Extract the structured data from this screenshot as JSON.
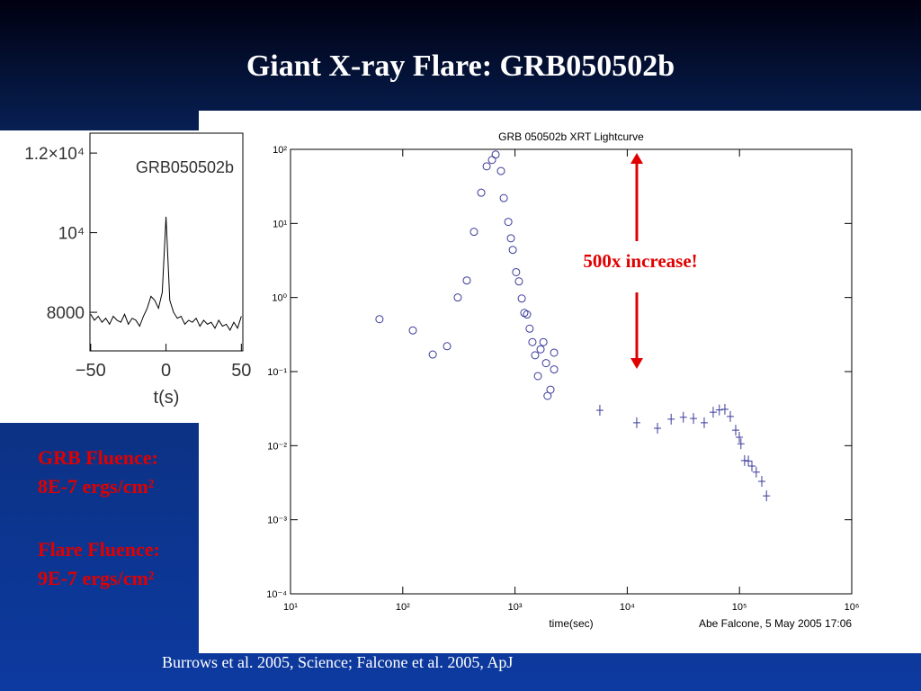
{
  "slide": {
    "title": "Giant X-ray Flare: GRB050502b",
    "fluence": [
      "GRB Fluence:",
      "8E-7 ergs/cm²",
      "Flare Fluence:",
      "9E-7 ergs/cm²"
    ],
    "footer": "Burrows et al. 2005, Science; Falcone et al. 2005, ApJ"
  },
  "chart_data": [
    {
      "type": "scatter",
      "title": "GRB 050502b XRT Lightcurve",
      "xlabel": "time(sec)",
      "credit": "Abe Falcone, 5 May 2005 17:06",
      "annotation": "500x increase!",
      "xscale": "log",
      "yscale": "log",
      "xlim": [
        10,
        1000000
      ],
      "ylim": [
        0.0001,
        100
      ],
      "xticks": [
        {
          "value": 10,
          "label": "10¹"
        },
        {
          "value": 100,
          "label": "10²"
        },
        {
          "value": 1000,
          "label": "10³"
        },
        {
          "value": 10000,
          "label": "10⁴"
        },
        {
          "value": 100000,
          "label": "10⁵"
        },
        {
          "value": 1000000,
          "label": "10⁶"
        }
      ],
      "yticks": [
        {
          "value": 0.0001,
          "label": "10⁻⁴"
        },
        {
          "value": 0.001,
          "label": "10⁻³"
        },
        {
          "value": 0.01,
          "label": "10⁻²"
        },
        {
          "value": 0.1,
          "label": "10⁻¹"
        },
        {
          "value": 1,
          "label": "10⁰"
        },
        {
          "value": 10,
          "label": "10¹"
        },
        {
          "value": 100,
          "label": "10²"
        }
      ],
      "series": [
        {
          "marker": "circle",
          "color": "#3a3a9a",
          "x": [
            62,
            123,
            185,
            248,
            309,
            372,
            431,
            500,
            559,
            624,
            672,
            750,
            794,
            871,
            919,
            955,
            1023,
            1084,
            1148,
            1211,
            1280,
            1350,
            1429,
            1510,
            1600,
            1690,
            1790,
            1890,
            1950,
            2070,
            2230,
            2230
          ],
          "values": [
            0.51,
            0.36,
            0.17,
            0.22,
            1.0,
            1.7,
            7.7,
            26,
            59,
            72,
            85,
            51,
            22,
            10.5,
            6.3,
            4.4,
            2.2,
            1.65,
            0.97,
            0.62,
            0.59,
            0.38,
            0.25,
            0.166,
            0.087,
            0.2,
            0.25,
            0.13,
            0.047,
            0.057,
            0.107,
            0.18
          ]
        },
        {
          "marker": "cross",
          "color": "#3a3a9a",
          "x": [
            5700,
            12150,
            18600,
            24600,
            31600,
            38900,
            48500,
            58300,
            66100,
            74100,
            82800,
            92500,
            99600,
            103000,
            111000,
            120000,
            129000,
            141000,
            158000,
            174000
          ],
          "values": [
            0.03,
            0.0204,
            0.0172,
            0.0228,
            0.0242,
            0.0233,
            0.0204,
            0.0283,
            0.0304,
            0.031,
            0.0248,
            0.0162,
            0.013,
            0.0106,
            0.0063,
            0.0062,
            0.0053,
            0.0044,
            0.0033,
            0.0021
          ]
        }
      ]
    },
    {
      "type": "line",
      "annotation": "GRB050502b",
      "xlabel": "t(s)",
      "xlim": [
        -50.5,
        51
      ],
      "ylim": [
        7030,
        12500
      ],
      "xticks": [
        {
          "value": -50,
          "label": "−50"
        },
        0,
        50
      ],
      "yticks": [
        8000,
        {
          "value": 10000,
          "label": "10⁴"
        },
        {
          "value": 12000,
          "label": "1.2×10⁴"
        }
      ],
      "color": "#000000",
      "x": [
        -50,
        -47.5,
        -45,
        -42.5,
        -40,
        -37.5,
        -35,
        -32.5,
        -30,
        -27.5,
        -25,
        -22.5,
        -20,
        -17.5,
        -15,
        -12.5,
        -10,
        -7.5,
        -5,
        -2.5,
        0,
        2.5,
        5,
        7.5,
        10,
        12.5,
        15,
        17.5,
        20,
        22.5,
        25,
        27.5,
        30,
        32.5,
        35,
        37.5,
        40,
        42.5,
        45,
        47.5,
        50
      ],
      "values": [
        7950,
        7800,
        7900,
        7750,
        7850,
        7700,
        7900,
        7800,
        7750,
        7950,
        7700,
        7850,
        7800,
        7650,
        7900,
        8100,
        8400,
        8300,
        8100,
        8500,
        10400,
        8300,
        8000,
        7850,
        7900,
        7700,
        7800,
        7750,
        7850,
        7650,
        7800,
        7700,
        7750,
        7600,
        7800,
        7650,
        7700,
        7550,
        7750,
        7600,
        7900
      ]
    }
  ]
}
